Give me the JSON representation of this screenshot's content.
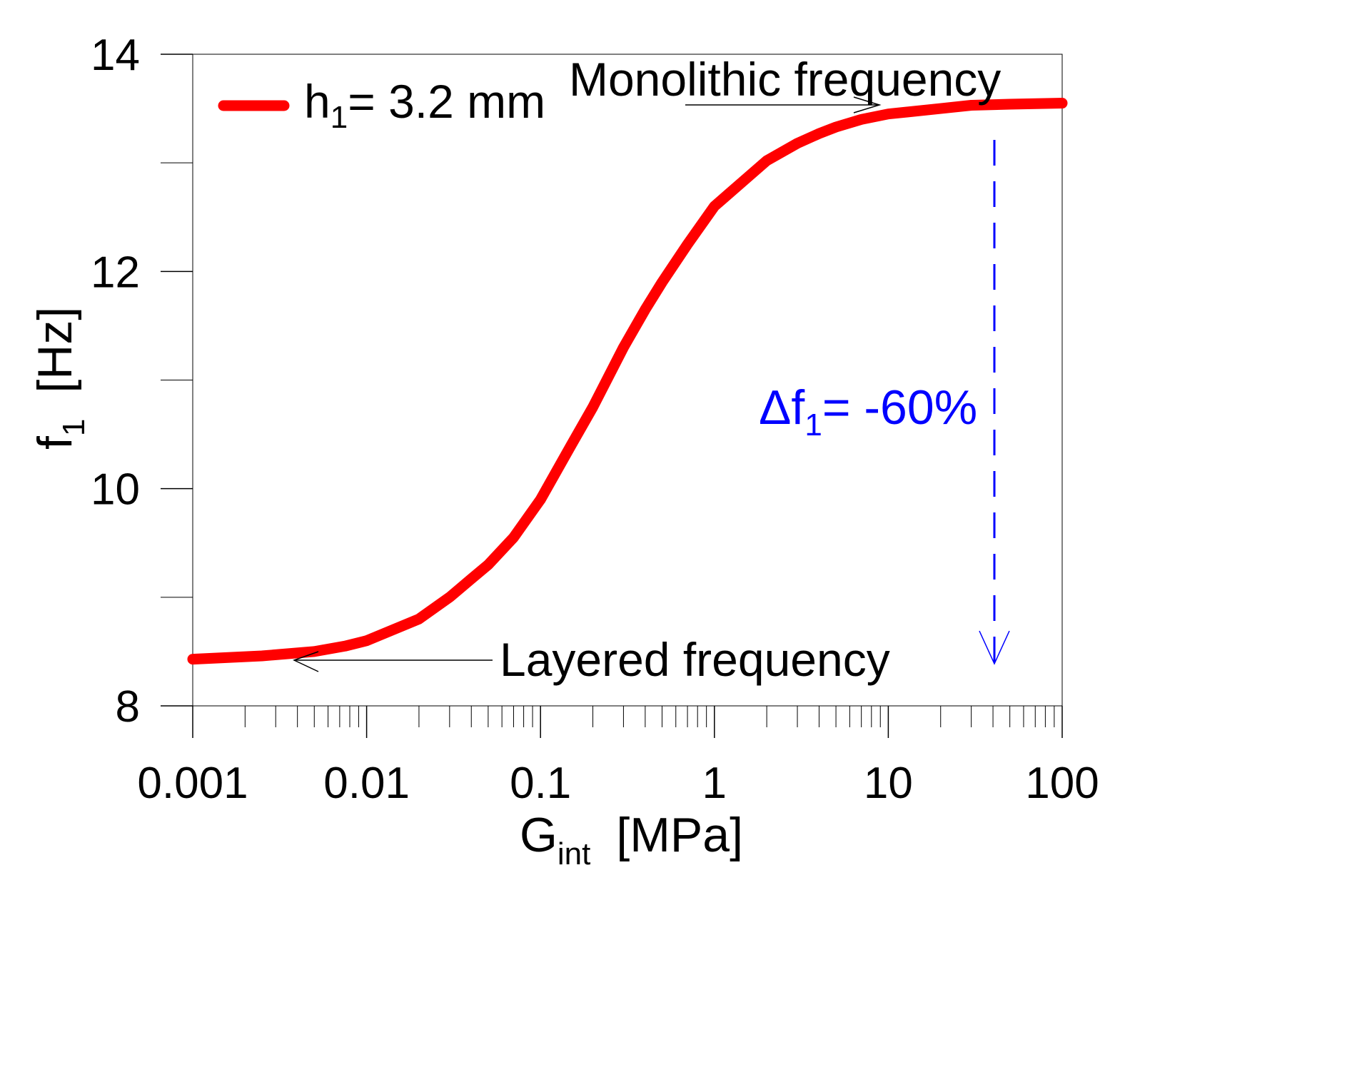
{
  "chart_data": {
    "type": "line",
    "title": "",
    "xlabel": {
      "main": "G",
      "sub": "int",
      "unit": "[MPa]"
    },
    "ylabel": {
      "main": "f",
      "sub": "1",
      "unit": "[Hz]"
    },
    "xscale": "log",
    "xlim": [
      0.001,
      100
    ],
    "ylim": [
      8,
      14
    ],
    "x_ticks": [
      0.001,
      0.01,
      0.1,
      1,
      10,
      100
    ],
    "x_tick_labels": [
      "0.001",
      "0.01",
      "0.1",
      "1",
      "10",
      "100"
    ],
    "y_ticks": [
      8,
      10,
      12,
      14
    ],
    "y_tick_labels": [
      "8",
      "10",
      "12",
      "14"
    ],
    "y_minor_ticks": [
      9,
      11,
      13
    ],
    "grid": false,
    "legend_position": "top-left",
    "series": [
      {
        "name": "h1= 3.2 mm",
        "color": "#ff0000",
        "x": [
          0.001,
          0.0025,
          0.005,
          0.0075,
          0.01,
          0.02,
          0.03,
          0.04,
          0.05,
          0.07,
          0.1,
          0.15,
          0.2,
          0.3,
          0.4,
          0.5,
          0.7,
          1,
          2,
          3,
          4,
          5,
          7,
          10,
          20,
          30,
          50,
          100
        ],
        "y": [
          8.43,
          8.46,
          8.5,
          8.55,
          8.6,
          8.8,
          9.0,
          9.17,
          9.3,
          9.55,
          9.9,
          10.4,
          10.75,
          11.3,
          11.65,
          11.9,
          12.25,
          12.6,
          13.02,
          13.18,
          13.27,
          13.33,
          13.4,
          13.45,
          13.5,
          13.53,
          13.54,
          13.55
        ]
      }
    ],
    "legend": {
      "label_main": "h",
      "label_sub": "1",
      "label_rest": "= 3.2 mm"
    },
    "annotations": [
      {
        "id": "monolithic",
        "text": "Monolithic frequency",
        "arrow_to": {
          "x": 9,
          "y": 13.55
        }
      },
      {
        "id": "layered",
        "text": "Layered frequency",
        "arrow_to": {
          "x": 0.004,
          "y": 8.43
        }
      },
      {
        "id": "delta",
        "text_main": "Δf",
        "text_sub": "1",
        "text_rest": "= -60%",
        "color": "#0000ff",
        "arrow_x": 40,
        "arrow_from_y": 13.1,
        "arrow_to_y": 8.35
      }
    ]
  }
}
